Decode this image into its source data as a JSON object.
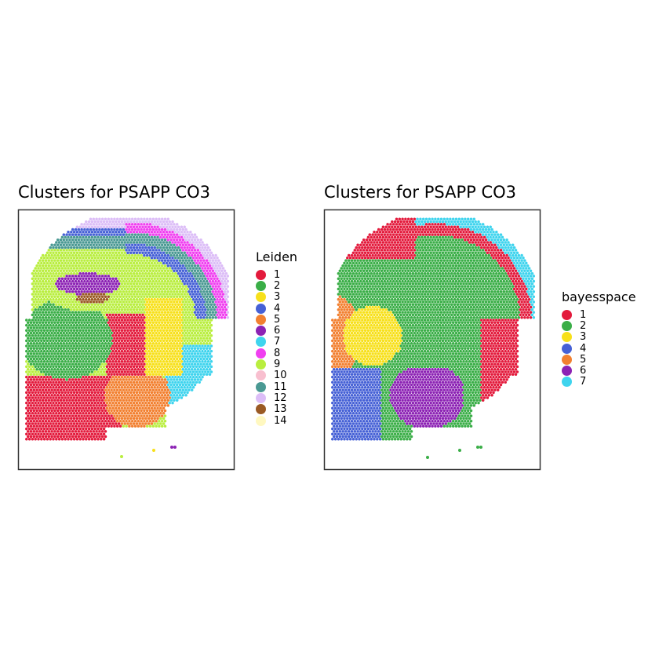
{
  "figure": {
    "panels": [
      {
        "title": "Clusters for PSAPP CO3",
        "legend_title": "Leiden"
      },
      {
        "title": "Clusters for PSAPP CO3",
        "legend_title": "bayesspace"
      }
    ]
  },
  "chart_data": [
    {
      "type": "scatter",
      "title": "Clusters for PSAPP CO3",
      "legend_title": "Leiden",
      "grid": false,
      "legend_position": "right",
      "series": [
        {
          "name": "1",
          "color": "#e31a3c"
        },
        {
          "name": "2",
          "color": "#3aae47"
        },
        {
          "name": "3",
          "color": "#f7e01a"
        },
        {
          "name": "4",
          "color": "#4661d6"
        },
        {
          "name": "5",
          "color": "#f28030"
        },
        {
          "name": "6",
          "color": "#8c22b4"
        },
        {
          "name": "7",
          "color": "#3fd4ee"
        },
        {
          "name": "8",
          "color": "#f03ff0"
        },
        {
          "name": "9",
          "color": "#b9ee3f"
        },
        {
          "name": "10",
          "color": "#f8bfcf"
        },
        {
          "name": "11",
          "color": "#4a9993"
        },
        {
          "name": "12",
          "color": "#dcbdf7"
        },
        {
          "name": "13",
          "color": "#9a5a24"
        },
        {
          "name": "14",
          "color": "#fff8c0"
        }
      ]
    },
    {
      "type": "scatter",
      "title": "Clusters for PSAPP CO3",
      "legend_title": "bayesspace",
      "grid": false,
      "legend_position": "right",
      "series": [
        {
          "name": "1",
          "color": "#e31a3c"
        },
        {
          "name": "2",
          "color": "#3aae47"
        },
        {
          "name": "3",
          "color": "#f7e01a"
        },
        {
          "name": "4",
          "color": "#4661d6"
        },
        {
          "name": "5",
          "color": "#f28030"
        },
        {
          "name": "6",
          "color": "#8c22b4"
        },
        {
          "name": "7",
          "color": "#3fd4ee"
        }
      ]
    }
  ]
}
